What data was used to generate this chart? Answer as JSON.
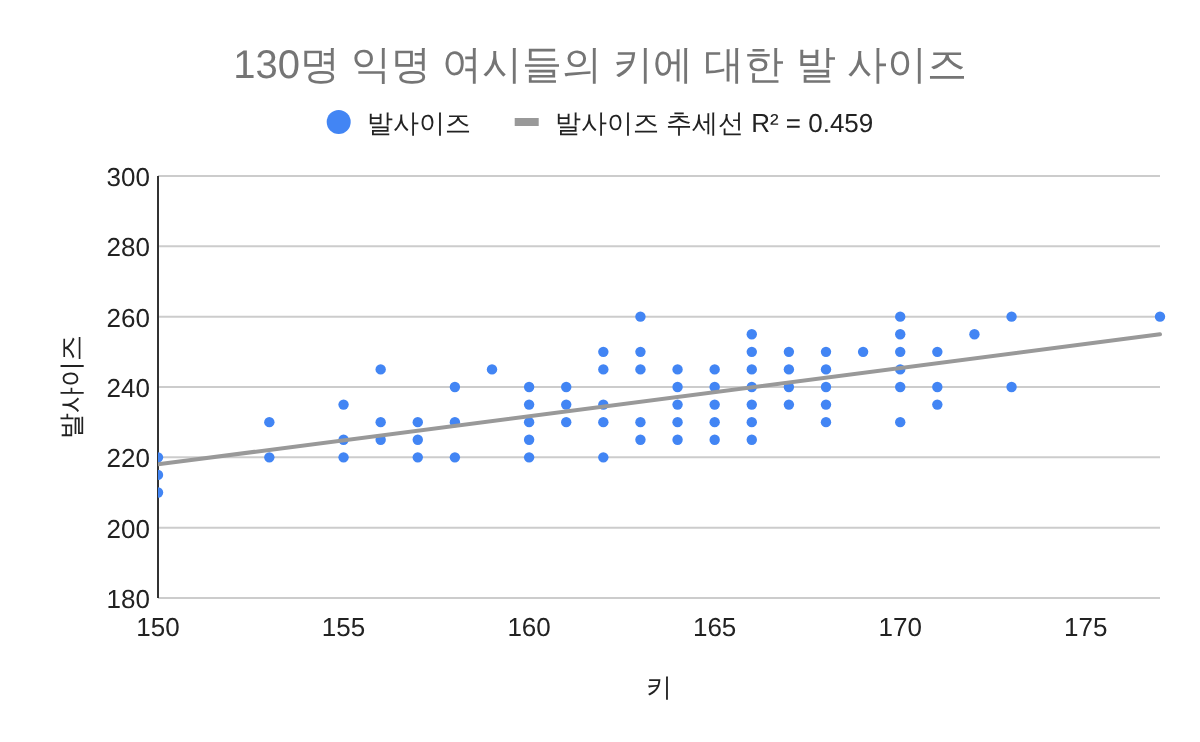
{
  "chart_data": {
    "type": "scatter",
    "title": "130명 익명 여시들의 키에 대한 발 사이즈",
    "xlabel": "키",
    "ylabel": "발사이즈",
    "series": [
      {
        "name": "발사이즈",
        "color": "#4285f4",
        "marker": "circle",
        "x": [
          150,
          150,
          150,
          153,
          153,
          155,
          155,
          155,
          156,
          156,
          156,
          157,
          157,
          157,
          158,
          158,
          158,
          159,
          160,
          160,
          160,
          160,
          160,
          161,
          161,
          161,
          162,
          162,
          162,
          162,
          162,
          163,
          163,
          163,
          163,
          163,
          164,
          164,
          164,
          164,
          164,
          165,
          165,
          165,
          165,
          165,
          166,
          166,
          166,
          166,
          166,
          166,
          166,
          167,
          167,
          167,
          167,
          168,
          168,
          168,
          168,
          168,
          169,
          170,
          170,
          170,
          170,
          170,
          170,
          171,
          171,
          171,
          172,
          173,
          173,
          177
        ],
        "values": [
          220,
          215,
          210,
          230,
          220,
          235,
          225,
          220,
          245,
          230,
          225,
          230,
          225,
          220,
          240,
          230,
          220,
          245,
          240,
          235,
          230,
          225,
          220,
          240,
          235,
          230,
          250,
          245,
          235,
          230,
          220,
          260,
          250,
          245,
          230,
          225,
          245,
          240,
          235,
          230,
          225,
          245,
          240,
          235,
          230,
          225,
          255,
          250,
          245,
          240,
          235,
          230,
          225,
          250,
          245,
          240,
          235,
          250,
          245,
          240,
          235,
          230,
          250,
          260,
          255,
          250,
          245,
          240,
          230,
          250,
          240,
          235,
          255,
          260,
          240,
          260
        ]
      },
      {
        "name": "발사이즈 추세선 R² = 0.459",
        "type": "line",
        "color": "#999999",
        "x": [
          150,
          177
        ],
        "values": [
          218,
          255
        ]
      }
    ],
    "xlim": [
      150,
      177
    ],
    "ylim": [
      180,
      300
    ],
    "xticks": [
      150,
      155,
      160,
      165,
      170,
      175
    ],
    "yticks": [
      180,
      200,
      220,
      240,
      260,
      280,
      300
    ],
    "grid": "y",
    "legend": "top"
  }
}
